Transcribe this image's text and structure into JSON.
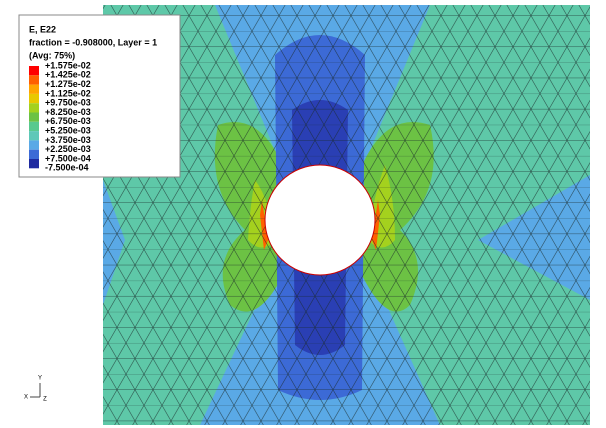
{
  "legend": {
    "title": "E, E22",
    "subtitle": "fraction = -0.908000, Layer = 1",
    "averaging": "(Avg: 75%)",
    "entries": [
      "+1.575e-02",
      "+1.425e-02",
      "+1.275e-02",
      "+1.125e-02",
      "+9.750e-03",
      "+8.250e-03",
      "+6.750e-03",
      "+5.250e-03",
      "+3.750e-03",
      "+2.250e-03",
      "+7.500e-04",
      "-7.500e-04"
    ],
    "colors": [
      "#ff0000",
      "#ff6000",
      "#ffa500",
      "#e8c800",
      "#a4d11e",
      "#6cc244",
      "#58c98e",
      "#5ec8b8",
      "#5aa9e6",
      "#3c6ad6",
      "#1e2aa0"
    ]
  },
  "triad": {
    "y": "Y",
    "x": "X",
    "z": "Z"
  }
}
